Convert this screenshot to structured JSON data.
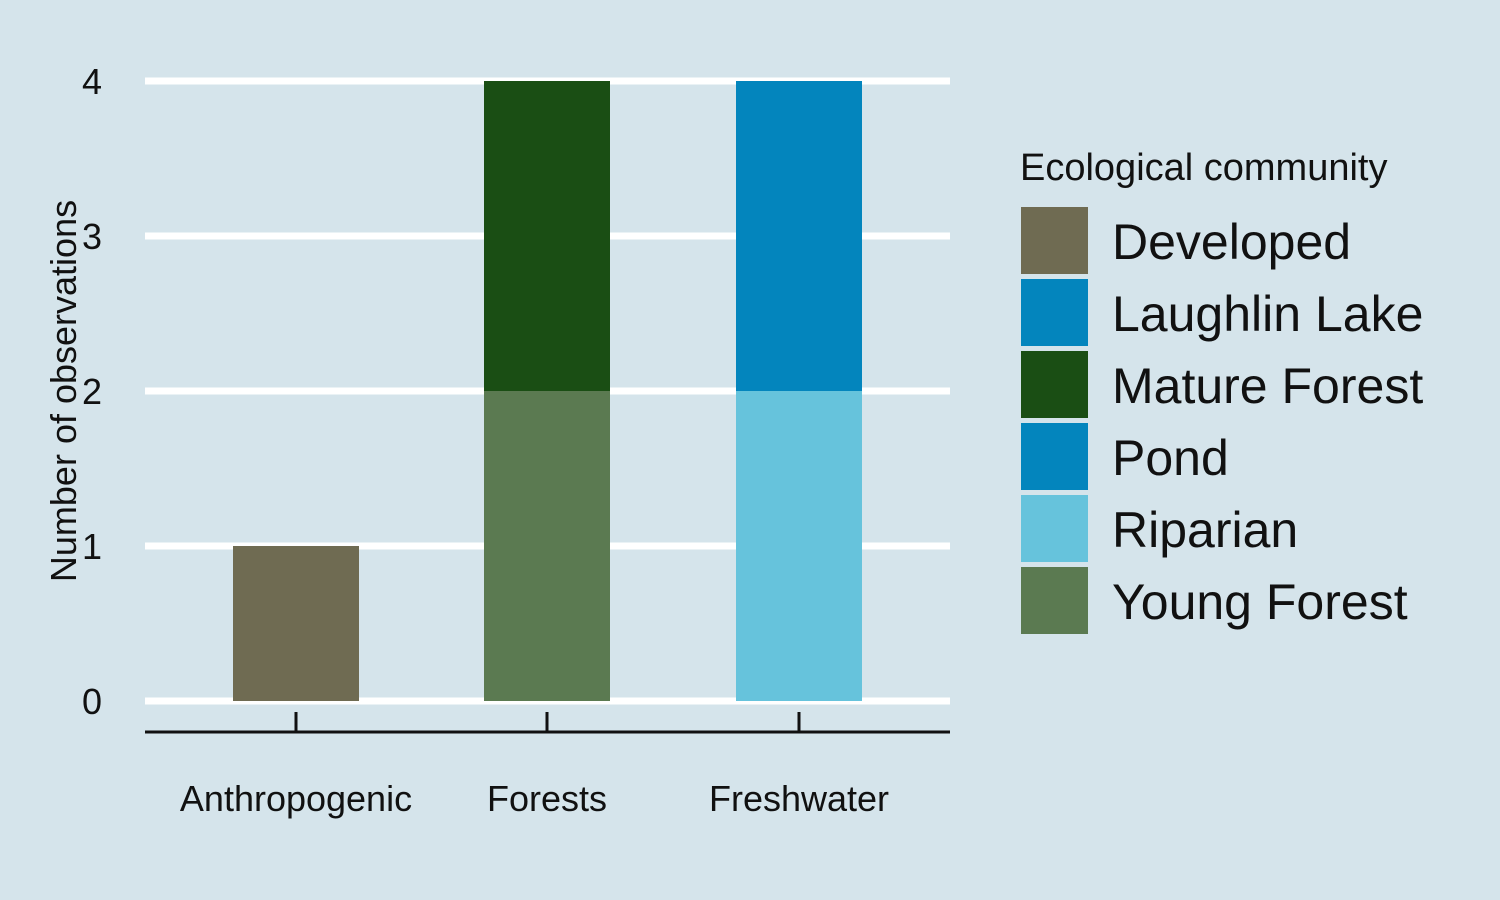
{
  "chart_data": {
    "type": "bar",
    "stacked": true,
    "ylabel": "Number of observations",
    "xlabel": "",
    "ylim": [
      0,
      4
    ],
    "yticks": [
      0,
      1,
      2,
      3,
      4
    ],
    "grid": "horizontal",
    "legend_position": "right",
    "categories": [
      "Anthropogenic",
      "Forests",
      "Freshwater"
    ],
    "legend": {
      "title": "Ecological community",
      "entries": [
        {
          "name": "Developed",
          "color": "#6f6b52"
        },
        {
          "name": "Laughlin Lake",
          "color": "#0385bd"
        },
        {
          "name": "Mature Forest",
          "color": "#1a4e14"
        },
        {
          "name": "Pond",
          "color": "#0385bd"
        },
        {
          "name": "Riparian",
          "color": "#66c3dc"
        },
        {
          "name": "Young Forest",
          "color": "#5b7a51"
        }
      ]
    },
    "stacks": [
      {
        "category": "Anthropogenic",
        "segments": [
          {
            "series": "Developed",
            "value": 1
          }
        ]
      },
      {
        "category": "Forests",
        "segments": [
          {
            "series": "Young Forest",
            "value": 2
          },
          {
            "series": "Mature Forest",
            "value": 2
          }
        ]
      },
      {
        "category": "Freshwater",
        "segments": [
          {
            "series": "Riparian",
            "value": 2
          },
          {
            "series": "Pond",
            "value": 1
          },
          {
            "series": "Laughlin Lake",
            "value": 1
          }
        ]
      }
    ],
    "colors": {
      "background": "#d5e4eb",
      "grid": "#ffffff",
      "axis": "#111111"
    }
  }
}
